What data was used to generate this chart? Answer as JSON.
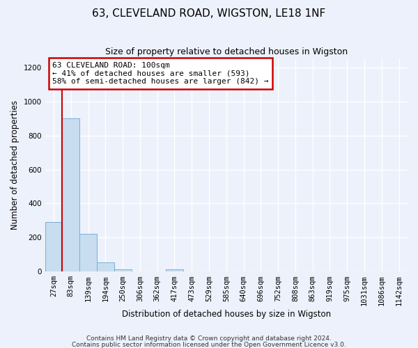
{
  "title": "63, CLEVELAND ROAD, WIGSTON, LE18 1NF",
  "subtitle": "Size of property relative to detached houses in Wigston",
  "xlabel": "Distribution of detached houses by size in Wigston",
  "ylabel": "Number of detached properties",
  "footnote1": "Contains HM Land Registry data © Crown copyright and database right 2024.",
  "footnote2": "Contains public sector information licensed under the Open Government Licence v3.0.",
  "bin_labels": [
    "27sqm",
    "83sqm",
    "139sqm",
    "194sqm",
    "250sqm",
    "306sqm",
    "362sqm",
    "417sqm",
    "473sqm",
    "529sqm",
    "585sqm",
    "640sqm",
    "696sqm",
    "752sqm",
    "808sqm",
    "863sqm",
    "919sqm",
    "975sqm",
    "1031sqm",
    "1086sqm",
    "1142sqm"
  ],
  "bar_heights": [
    290,
    900,
    220,
    55,
    15,
    0,
    0,
    15,
    0,
    0,
    0,
    0,
    0,
    0,
    0,
    0,
    0,
    0,
    0,
    0,
    0
  ],
  "bar_color": "#c8ddf0",
  "bar_edge_color": "#7aafd4",
  "vline_x": 0.5,
  "vline_color": "#cc0000",
  "annotation_text": "63 CLEVELAND ROAD: 100sqm\n← 41% of detached houses are smaller (593)\n58% of semi-detached houses are larger (842) →",
  "annotation_box_color": "#ffffff",
  "annotation_box_edge": "#cc0000",
  "ylim": [
    0,
    1250
  ],
  "yticks": [
    0,
    200,
    400,
    600,
    800,
    1000,
    1200
  ],
  "background_color": "#edf1fb",
  "grid_color": "#ffffff",
  "title_fontsize": 11,
  "subtitle_fontsize": 9,
  "axis_label_fontsize": 8.5,
  "tick_fontsize": 7.5,
  "footnote_fontsize": 6.5
}
